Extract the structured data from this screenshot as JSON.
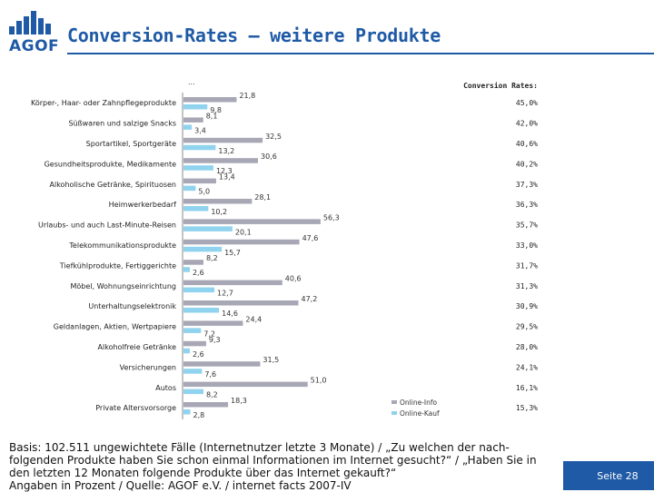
{
  "header": {
    "logo_text": "AGOF",
    "title": "Conversion-Rates – weitere Produkte"
  },
  "chart_data": {
    "type": "bar",
    "orientation": "horizontal",
    "subtitle": "...",
    "conversion_header": "Conversion Rates:",
    "categories": [
      "Körper-, Haar- oder Zahnpflegeprodukte",
      "Süßwaren und salzige Snacks",
      "Sportartikel, Sportgeräte",
      "Gesundheitsprodukte, Medikamente",
      "Alkoholische Getränke, Spirituosen",
      "Heimwerkerbedarf",
      "Urlaubs- und auch Last-Minute-Reisen",
      "Telekommunikationsprodukte",
      "Tiefkühlprodukte, Fertiggerichte",
      "Möbel, Wohnungseinrichtung",
      "Unterhaltungselektronik",
      "Geldanlagen, Aktien, Wertpapiere",
      "Alkoholfreie Getränke",
      "Versicherungen",
      "Autos",
      "Private Altersvorsorge"
    ],
    "series": [
      {
        "name": "Online-Info",
        "color": "#a7a7b5",
        "values": [
          21.8,
          8.1,
          32.5,
          30.6,
          13.4,
          28.1,
          56.3,
          47.6,
          8.2,
          40.6,
          47.2,
          24.4,
          9.3,
          31.5,
          51.0,
          18.3
        ],
        "labels": [
          "21,8",
          "8,1",
          "32,5",
          "30,6",
          "13,4",
          "28,1",
          "56,3",
          "47,6",
          "8,2",
          "40,6",
          "47,2",
          "24,4",
          "9,3",
          "31,5",
          "51,0",
          "18,3"
        ]
      },
      {
        "name": "Online-Kauf",
        "color": "#8fd3ee",
        "values": [
          9.8,
          3.4,
          13.2,
          12.3,
          5.0,
          10.2,
          20.1,
          15.7,
          2.6,
          12.7,
          14.6,
          7.2,
          2.6,
          7.6,
          8.2,
          2.8
        ],
        "labels": [
          "9,8",
          "3,4",
          "13,2",
          "12,3",
          "5,0",
          "10,2",
          "20,1",
          "15,7",
          "2,6",
          "12,7",
          "14,6",
          "7,2",
          "2,6",
          "7,6",
          "8,2",
          "2,8"
        ]
      }
    ],
    "conversion_rates": [
      "45,0%",
      "42,0%",
      "40,6%",
      "40,2%",
      "37,3%",
      "36,3%",
      "35,7%",
      "33,0%",
      "31,7%",
      "31,3%",
      "30,9%",
      "29,5%",
      "28,0%",
      "24,1%",
      "16,1%",
      "15,3%"
    ],
    "xlim": [
      0,
      100
    ],
    "legend_position": "bottom-right"
  },
  "footnote": [
    "Basis: 102.511 ungewichtete Fälle (Internetnutzer letzte 3 Monate) / „Zu welchen der nach-",
    "folgenden Produkte haben Sie schon einmal Informationen im Internet gesucht?“ / „Haben Sie in",
    "den letzten 12 Monaten folgende Produkte über das Internet gekauft?“",
    "Angaben in Prozent / Quelle: AGOF e.V. / internet facts 2007-IV"
  ],
  "page_label": "Seite 28"
}
